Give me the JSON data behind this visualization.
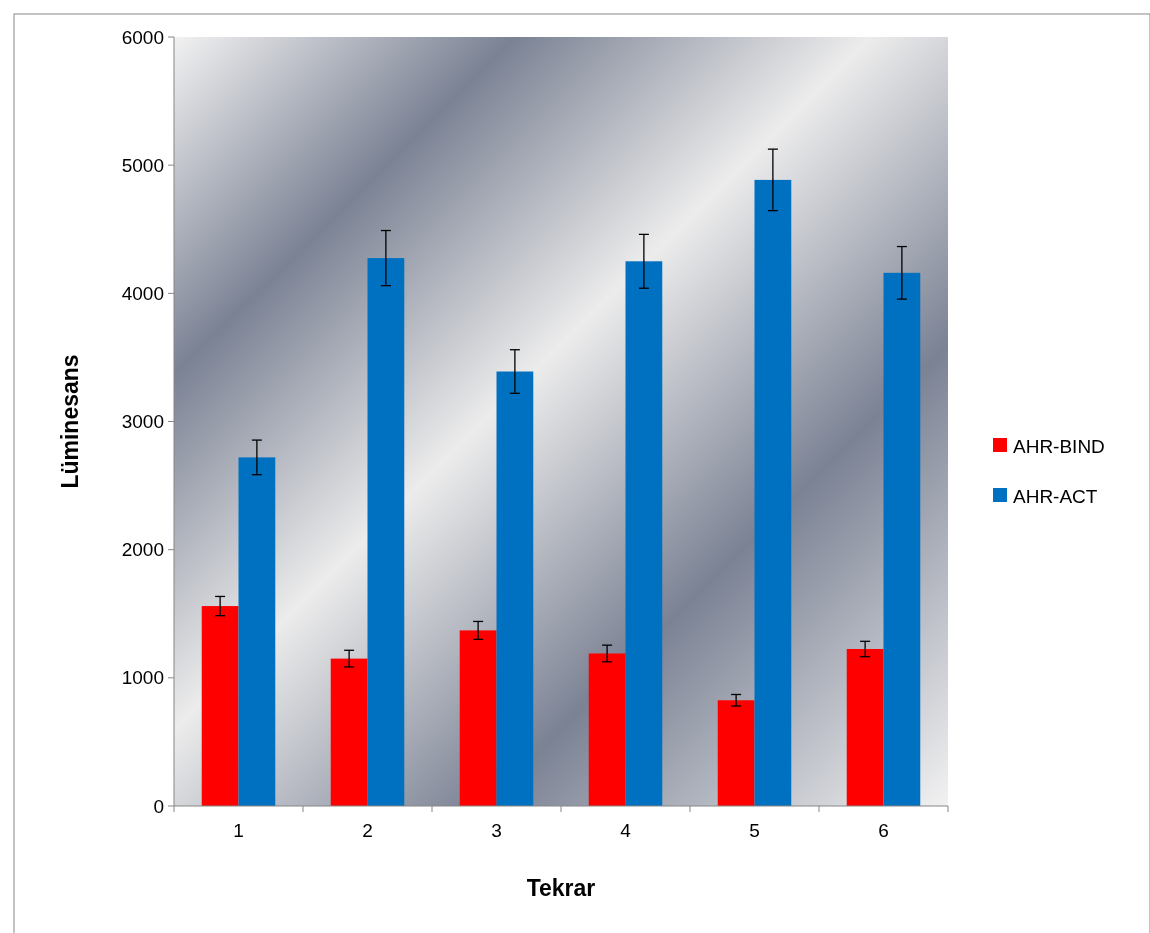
{
  "chart_data": {
    "type": "bar",
    "xlabel": "Tekrar",
    "ylabel": "Lüminesans",
    "categories": [
      "1",
      "2",
      "3",
      "4",
      "5",
      "6"
    ],
    "series": [
      {
        "name": "AHR-BIND",
        "color": "#ff0000",
        "values": [
          1560,
          1150,
          1370,
          1190,
          825,
          1225
        ],
        "errors": [
          75,
          65,
          70,
          65,
          45,
          60
        ]
      },
      {
        "name": "AHR-ACT",
        "color": "#0070c0",
        "values": [
          2720,
          4275,
          3390,
          4250,
          4885,
          4160
        ],
        "errors": [
          135,
          215,
          170,
          210,
          240,
          205
        ]
      }
    ],
    "ylim": [
      0,
      6000
    ],
    "yticks": [
      0,
      1000,
      2000,
      3000,
      4000,
      5000,
      6000
    ],
    "grid": false,
    "legend": "right"
  }
}
